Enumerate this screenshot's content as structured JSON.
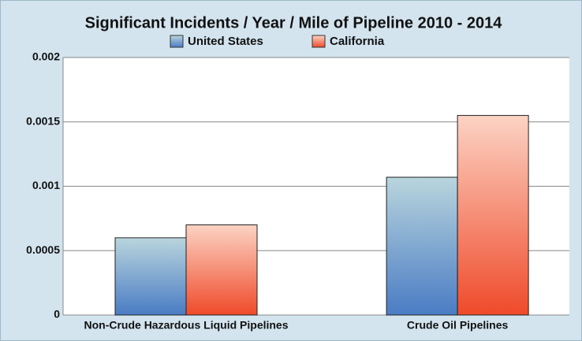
{
  "chart_data": {
    "type": "bar",
    "title": "Significant Incidents / Year / Mile of Pipeline 2010 - 2014",
    "categories": [
      "Non-Crude Hazardous Liquid Pipelines",
      "Crude Oil Pipelines"
    ],
    "series": [
      {
        "name": "United States",
        "color": "#4a7cc4",
        "values": [
          0.0006,
          0.00107
        ]
      },
      {
        "name": "California",
        "color": "#ef4a2a",
        "values": [
          0.0007,
          0.00155
        ]
      }
    ],
    "ylim": [
      0,
      0.002
    ],
    "yticks": [
      0,
      0.0005,
      0.001,
      0.0015,
      0.002
    ],
    "grid": true
  }
}
